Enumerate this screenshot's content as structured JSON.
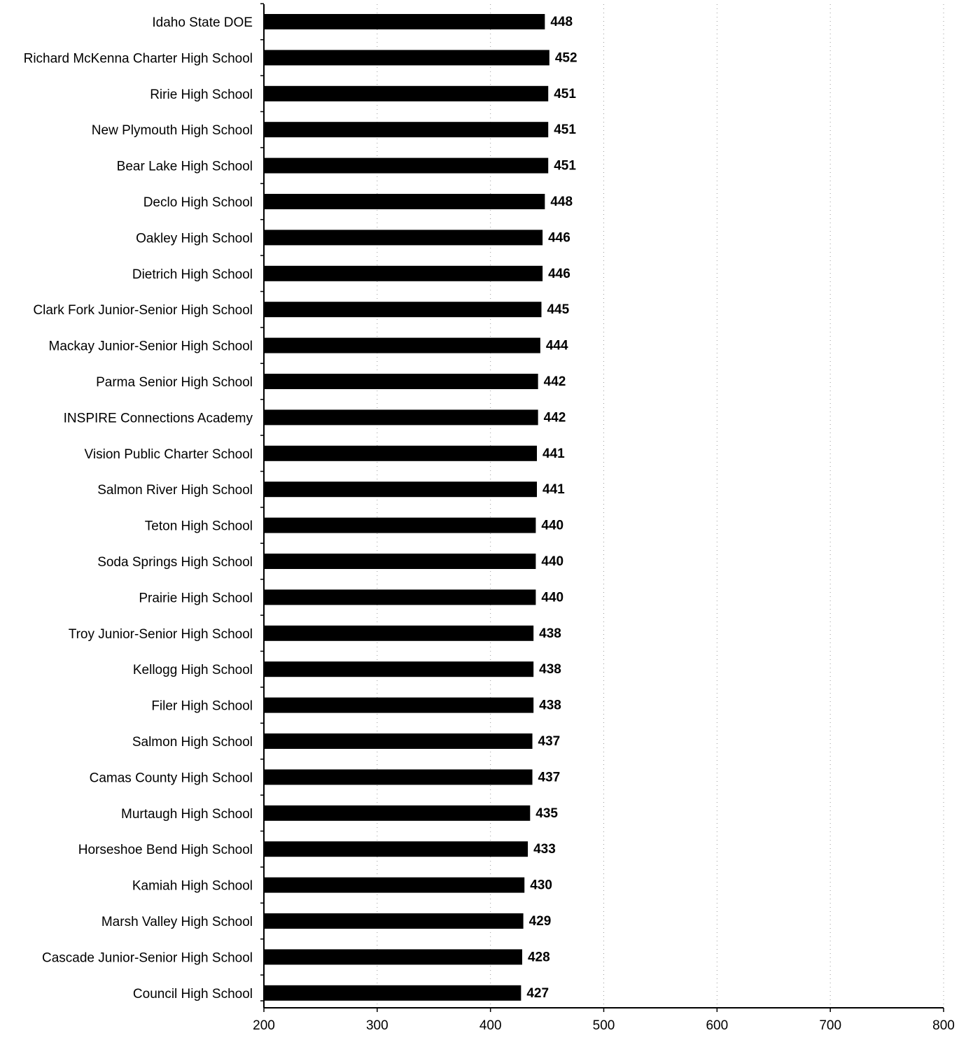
{
  "chart_data": {
    "type": "bar",
    "orientation": "horizontal",
    "title": "",
    "xlabel": "",
    "ylabel": "",
    "xlim": [
      200,
      800
    ],
    "x_ticks": [
      200,
      300,
      400,
      500,
      600,
      700,
      800
    ],
    "grid": "vertical dotted",
    "legend": "none",
    "bar_color": "#000000",
    "categories": [
      "Idaho State DOE",
      "Richard McKenna Charter High School",
      "Ririe High School",
      "New Plymouth High School",
      "Bear Lake High School",
      "Declo High School",
      "Oakley High School",
      "Dietrich High School",
      "Clark Fork Junior-Senior High School",
      "Mackay Junior-Senior High School",
      "Parma Senior High School",
      "INSPIRE Connections Academy",
      "Vision Public Charter School",
      "Salmon River High School",
      "Teton High School",
      "Soda Springs High School",
      "Prairie High School",
      "Troy Junior-Senior High School",
      "Kellogg High School",
      "Filer High School",
      "Salmon High School",
      "Camas County High School",
      "Murtaugh High School",
      "Horseshoe Bend High School",
      "Kamiah High School",
      "Marsh Valley High School",
      "Cascade Junior-Senior High School",
      "Council High School"
    ],
    "values": [
      448,
      452,
      451,
      451,
      451,
      448,
      446,
      446,
      445,
      444,
      442,
      442,
      441,
      441,
      440,
      440,
      440,
      438,
      438,
      438,
      437,
      437,
      435,
      433,
      430,
      429,
      428,
      427
    ]
  }
}
